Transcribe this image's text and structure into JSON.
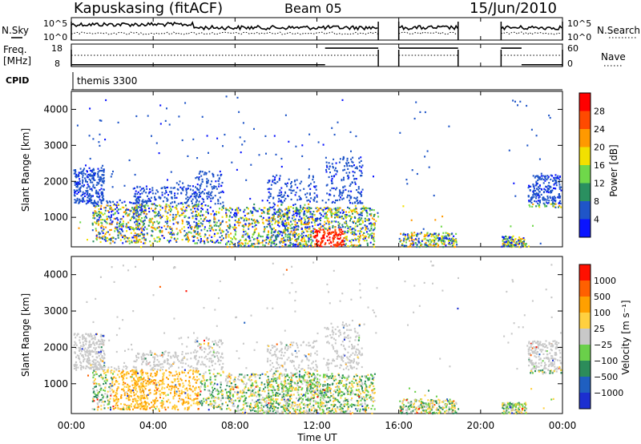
{
  "header": {
    "title": "Kapuskasing (fitACF)",
    "beam": "Beam 05",
    "date": "15/Jun/2010"
  },
  "side_labels": {
    "nsky": "N.Sky",
    "freq": "Freq.",
    "mhz": "[MHz]",
    "cpid": "CPID",
    "nsearch": "N.Search",
    "nave": "Nave"
  },
  "cpid_text": "themis 3300",
  "axes": {
    "x_label": "Time UT",
    "y_label": "Slant Range [km]"
  },
  "chart_data": [
    {
      "type": "line",
      "title": "N.Sky / N.Search",
      "y_ticks_left": [
        "10^5",
        "10^0"
      ],
      "y_ticks_right": [
        "10^5",
        "10^0"
      ],
      "x": [
        "00:00",
        "04:00",
        "08:00",
        "12:00",
        "16:00",
        "20:00",
        "00:00"
      ],
      "series": [
        {
          "name": "N.Sky",
          "segments": [
            [
              0.0,
              15.0
            ],
            [
              16.0,
              18.9
            ],
            [
              21.0,
              24.0
            ]
          ]
        },
        {
          "name": "N.Search",
          "segments": [
            [
              0.0,
              15.0
            ],
            [
              16.0,
              18.9
            ],
            [
              21.0,
              24.0
            ]
          ]
        }
      ]
    },
    {
      "type": "line",
      "title": "Freq. / Nave",
      "y_ticks_left": [
        "18",
        "8"
      ],
      "y_ticks_right": [
        "60",
        "0"
      ],
      "segments": [
        [
          0.0,
          15.0
        ],
        [
          16.0,
          18.9
        ],
        [
          21.0,
          24.0
        ]
      ],
      "freq_steps": [
        {
          "t0": 0.0,
          "t1": 12.4,
          "level": 0.08
        },
        {
          "t0": 12.4,
          "t1": 15.0,
          "level": 0.82
        },
        {
          "t0": 16.0,
          "t1": 18.9,
          "level": 0.82
        },
        {
          "t0": 21.0,
          "t1": 22.0,
          "level": 0.82
        },
        {
          "t0": 22.0,
          "t1": 24.0,
          "level": 0.08
        }
      ]
    },
    {
      "type": "heatmap",
      "title": "Power",
      "xlim": [
        "00:00",
        "00:00"
      ],
      "ylim": [
        180,
        4500
      ],
      "y_ticks": [
        1000,
        2000,
        3000,
        4000
      ],
      "x": [
        "00:00",
        "04:00",
        "08:00",
        "12:00",
        "16:00",
        "20:00",
        "00:00"
      ],
      "colorbar": {
        "label": "Power [dB]",
        "ticks": [
          "4",
          "8",
          "12",
          "16",
          "20",
          "24",
          "28"
        ],
        "colors": [
          "#0a14ff",
          "#1f55c8",
          "#2a9060",
          "#6fd84a",
          "#f2e000",
          "#ff9900",
          "#ff4a00",
          "#ff0000"
        ]
      }
    },
    {
      "type": "heatmap",
      "title": "Velocity",
      "xlim": [
        "00:00",
        "00:00"
      ],
      "ylim": [
        180,
        4500
      ],
      "y_ticks": [
        1000,
        2000,
        3000,
        4000
      ],
      "x": [
        "00:00",
        "04:00",
        "08:00",
        "12:00",
        "16:00",
        "20:00",
        "00:00"
      ],
      "colorbar": {
        "label": "Velocity [m s⁻¹]",
        "ticks": [
          "1000",
          "500",
          "100",
          "25",
          "−25",
          "−100",
          "−500",
          "−1000"
        ],
        "colors": [
          "#1c2fd0",
          "#1f5fc0",
          "#2c8c5a",
          "#6ad04a",
          "#c8c8c8",
          "#ffd040",
          "#ffa000",
          "#ff6000",
          "#ff1000"
        ]
      }
    }
  ]
}
